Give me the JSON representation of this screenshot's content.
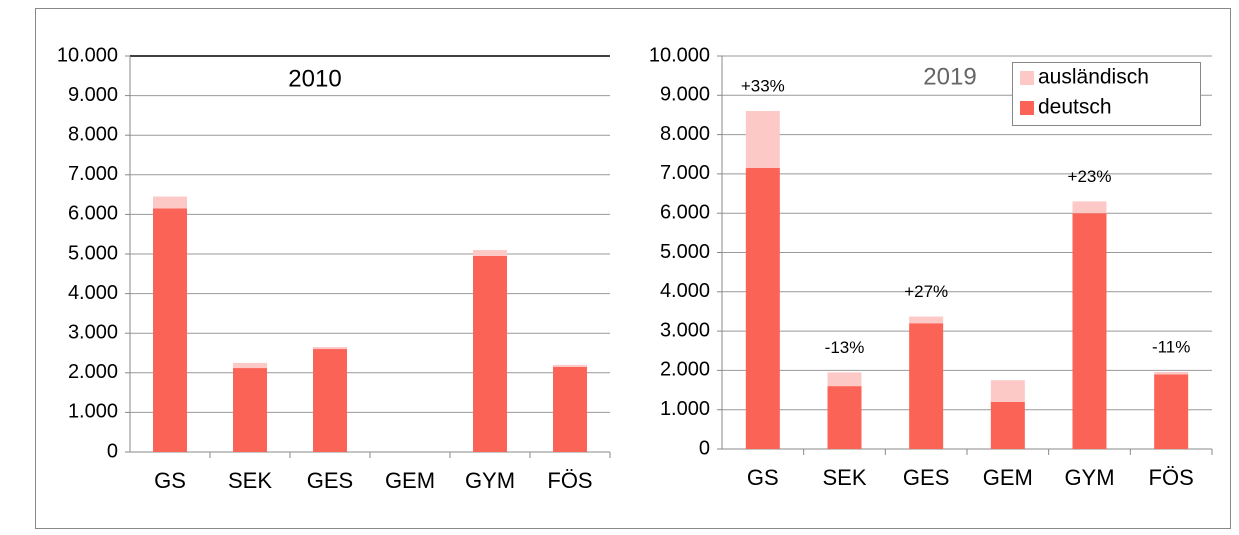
{
  "chart_data": [
    {
      "type": "bar",
      "stacked": true,
      "title": "2010",
      "categories": [
        "GS",
        "SEK",
        "GES",
        "GEM",
        "GYM",
        "FÖS"
      ],
      "series": [
        {
          "color": "#fc6357",
          "values": [
            6150,
            2120,
            2600,
            0,
            4950,
            2150
          ]
        },
        {
          "color": "#fcc9c6",
          "values": [
            300,
            130,
            50,
            0,
            150,
            50
          ]
        }
      ],
      "ylim": [
        0,
        10000
      ],
      "yticks": [
        0,
        {
          "value": 1000,
          "label": "1.000"
        },
        {
          "value": 2000,
          "label": "2.000"
        },
        {
          "value": 3000,
          "label": "3.000"
        },
        {
          "value": 4000,
          "label": "4.000"
        },
        {
          "value": 5000,
          "label": "5.000"
        },
        {
          "value": 6000,
          "label": "6.000"
        },
        {
          "value": 7000,
          "label": "7.000"
        },
        {
          "value": 8000,
          "label": "8.000"
        },
        {
          "value": 9000,
          "label": "9.000"
        },
        {
          "value": 10000,
          "label": "10.000"
        }
      ],
      "grid": true
    },
    {
      "type": "bar",
      "stacked": true,
      "title": "2019",
      "categories": [
        "GS",
        "SEK",
        "GES",
        "GEM",
        "GYM",
        "FÖS"
      ],
      "series": [
        {
          "name": "deutsch",
          "color": "#fc6357",
          "values": [
            7150,
            1600,
            3200,
            1200,
            6000,
            1900
          ]
        },
        {
          "name": "ausländisch",
          "color": "#fcc9c6",
          "values": [
            1450,
            350,
            170,
            550,
            300,
            60
          ]
        }
      ],
      "annotations": [
        "+33%",
        "-13%",
        "+27%",
        null,
        "+23%",
        "-11%"
      ],
      "ylim": [
        0,
        10000
      ],
      "yticks": [
        0,
        {
          "value": 1000,
          "label": "1.000"
        },
        {
          "value": 2000,
          "label": "2.000"
        },
        {
          "value": 3000,
          "label": "3.000"
        },
        {
          "value": 4000,
          "label": "4.000"
        },
        {
          "value": 5000,
          "label": "5.000"
        },
        {
          "value": 6000,
          "label": "6.000"
        },
        {
          "value": 7000,
          "label": "7.000"
        },
        {
          "value": 8000,
          "label": "8.000"
        },
        {
          "value": 9000,
          "label": "9.000"
        },
        {
          "value": 10000,
          "label": "10.000"
        }
      ],
      "grid": true,
      "legend": "upper right"
    }
  ]
}
